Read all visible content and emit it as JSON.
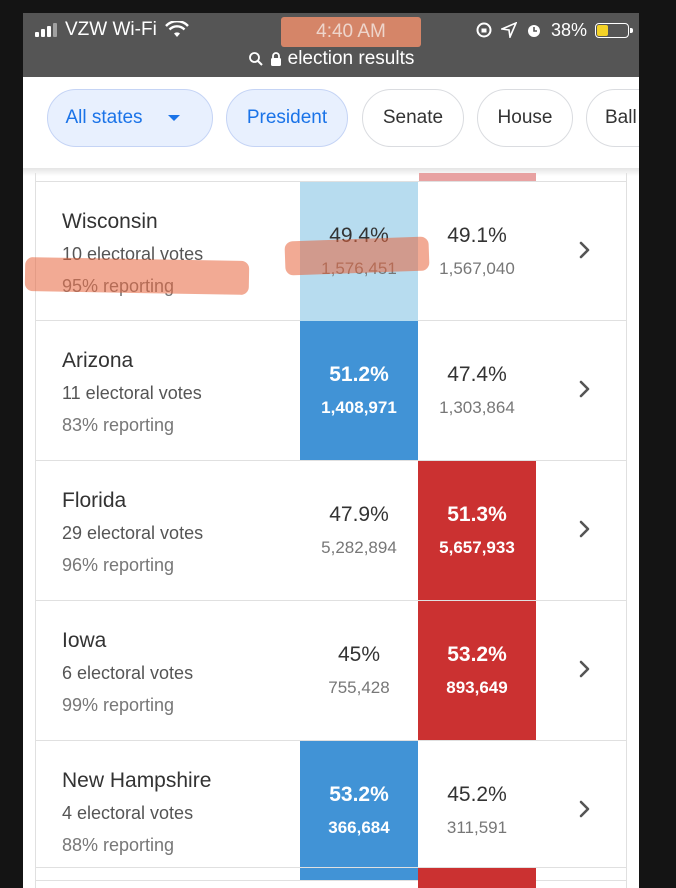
{
  "status_bar": {
    "carrier": "VZW Wi-Fi",
    "time": "4:40 AM",
    "battery": "38%",
    "battery_level": 0.38
  },
  "url_bar": {
    "text": "election results"
  },
  "filter_chips": [
    {
      "label": "All states",
      "active": true
    },
    {
      "label": "President",
      "active": true
    },
    {
      "label": "Senate",
      "active": false
    },
    {
      "label": "House",
      "active": false
    },
    {
      "label": "Ball",
      "active": false
    }
  ],
  "rows": [
    {
      "state": "Wisconsin",
      "electoral": "10 electoral votes",
      "reporting": "95% reporting",
      "dem_pct": "49.4%",
      "dem_votes": "1,576,451",
      "rep_pct": "49.1%",
      "rep_votes": "1,567,040",
      "leader": "dem-light"
    },
    {
      "state": "Arizona",
      "electoral": "11 electoral votes",
      "reporting": "83% reporting",
      "dem_pct": "51.2%",
      "dem_votes": "1,408,971",
      "rep_pct": "47.4%",
      "rep_votes": "1,303,864",
      "leader": "dem"
    },
    {
      "state": "Florida",
      "electoral": "29 electoral votes",
      "reporting": "96% reporting",
      "dem_pct": "47.9%",
      "dem_votes": "5,282,894",
      "rep_pct": "51.3%",
      "rep_votes": "5,657,933",
      "leader": "rep"
    },
    {
      "state": "Iowa",
      "electoral": "6 electoral votes",
      "reporting": "99% reporting",
      "dem_pct": "45%",
      "dem_votes": "755,428",
      "rep_pct": "53.2%",
      "rep_votes": "893,649",
      "leader": "rep"
    },
    {
      "state": "New Hampshire",
      "electoral": "4 electoral votes",
      "reporting": "88% reporting",
      "dem_pct": "53.2%",
      "dem_votes": "366,684",
      "rep_pct": "45.2%",
      "rep_votes": "311,591",
      "leader": "dem"
    }
  ],
  "colors": {
    "dem": "#4193d6",
    "dem_light": "#b7dcef",
    "rep": "#cb3131",
    "highlight": "#e8653d",
    "status_bar": "#555555"
  }
}
